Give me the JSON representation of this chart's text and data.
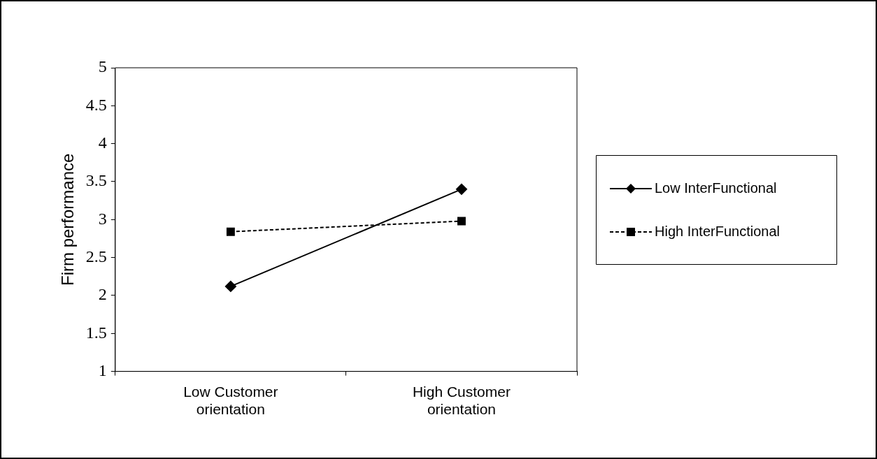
{
  "chart_data": {
    "type": "line",
    "ylabel": "Firm performance",
    "categories": [
      "Low Customer orientation",
      "High Customer orientation"
    ],
    "ylim": [
      1,
      5
    ],
    "yticks": [
      1,
      1.5,
      2,
      2.5,
      3,
      3.5,
      4,
      4.5,
      5
    ],
    "grid": false,
    "legend": "right",
    "series": [
      {
        "name": "Low InterFunctional",
        "color": "#000000",
        "values": [
          2.12,
          3.4
        ],
        "marker": "diamond",
        "line_style": "solid"
      },
      {
        "name": "High InterFunctional",
        "color": "#000000",
        "values": [
          2.84,
          2.98
        ],
        "marker": "square",
        "line_style": "dashed"
      }
    ]
  }
}
